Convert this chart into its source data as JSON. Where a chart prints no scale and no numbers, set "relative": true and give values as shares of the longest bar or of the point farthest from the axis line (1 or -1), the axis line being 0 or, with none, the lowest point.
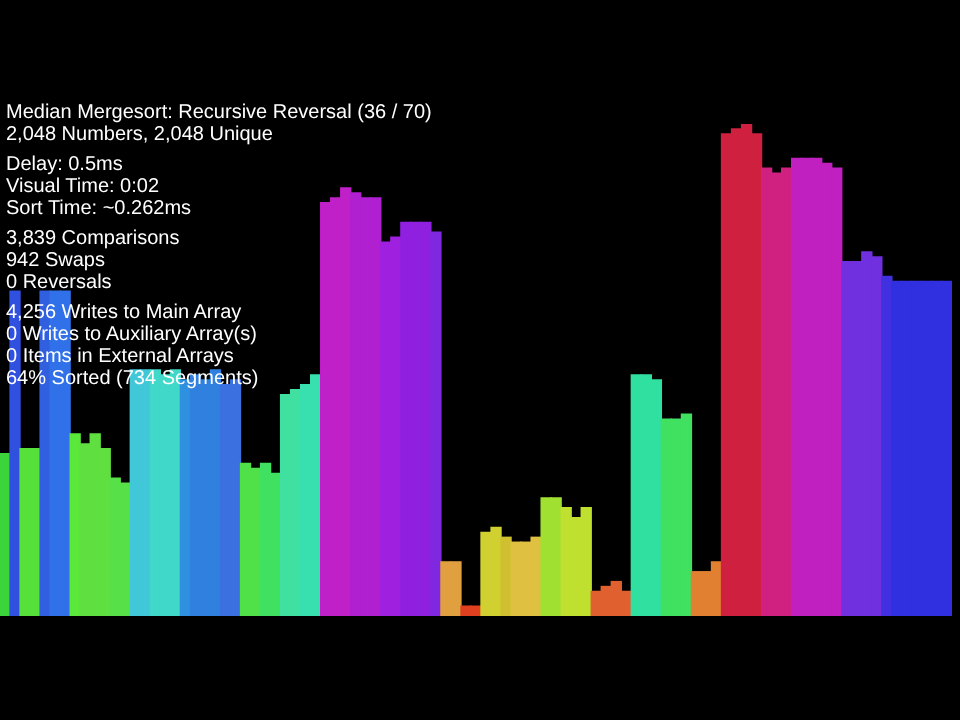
{
  "chart_data": {
    "type": "bar",
    "relative": true,
    "legend": false,
    "tick_labels": false,
    "title": "Median Mergesort: Recursive Reversal (36 / 70)",
    "subtitle": "2,048 Numbers, 2,048 Unique",
    "annotations": [
      "Delay: 0.5ms",
      "Visual Time: 0:02",
      "Sort Time: ~0.262ms",
      "3,839 Comparisons",
      "942 Swaps",
      "0 Reversals",
      "4,256 Writes to Main Array",
      "0 Writes to Auxiliary Array(s)",
      "0 Items in External Arrays",
      "64% Sorted (734 Segments)"
    ],
    "categories": [
      null,
      null,
      null,
      null,
      null,
      null,
      null,
      null,
      null,
      null,
      null,
      null,
      null,
      null,
      null,
      null,
      null,
      null,
      null,
      null,
      null,
      null,
      null,
      null,
      null,
      null,
      null,
      null,
      null,
      null,
      null,
      null,
      null,
      null,
      null,
      null,
      null,
      null,
      null,
      null,
      null,
      null,
      null,
      null,
      null,
      null,
      null,
      null,
      null,
      null,
      null,
      null,
      null,
      null,
      null,
      null,
      null,
      null,
      null,
      null,
      null,
      null,
      null,
      null,
      null,
      null,
      null,
      null,
      null,
      null,
      null,
      null,
      null,
      null,
      null,
      null,
      null,
      null,
      null,
      null,
      null,
      null,
      null,
      null,
      null,
      null,
      null,
      null,
      null,
      null,
      null,
      null,
      null,
      null,
      null
    ],
    "values": [
      0.33,
      0.66,
      0.34,
      0.34,
      0.66,
      0.66,
      0.66,
      0.37,
      0.35,
      0.37,
      0.34,
      0.28,
      0.27,
      0.5,
      0.5,
      0.5,
      0.49,
      0.5,
      0.48,
      0.49,
      0.48,
      0.5,
      0.47,
      0.48,
      0.31,
      0.3,
      0.31,
      0.29,
      0.45,
      0.46,
      0.47,
      0.49,
      0.84,
      0.85,
      0.87,
      0.86,
      0.85,
      0.85,
      0.76,
      0.77,
      0.8,
      0.8,
      0.8,
      0.78,
      0.11,
      0.11,
      0.02,
      0.02,
      0.17,
      0.18,
      0.16,
      0.15,
      0.15,
      0.16,
      0.24,
      0.24,
      0.22,
      0.2,
      0.22,
      0.05,
      0.06,
      0.07,
      0.05,
      0.49,
      0.49,
      0.48,
      0.4,
      0.4,
      0.41,
      0.09,
      0.09,
      0.11,
      0.98,
      0.99,
      1,
      0.98,
      0.91,
      0.9,
      0.91,
      0.93,
      0.93,
      0.93,
      0.92,
      0.91,
      0.72,
      0.72,
      0.74,
      0.73,
      0.69,
      0.68,
      0.68,
      0.68,
      0.68,
      0.68,
      0.68
    ],
    "colors": [
      "#3bd43b",
      "#3050e0",
      "#55e03a",
      "#55e03a",
      "#3060e0",
      "#3070e8",
      "#3070e8",
      "#5ae83a",
      "#60e040",
      "#60e040",
      "#60e040",
      "#58e048",
      "#58e048",
      "#40c8d8",
      "#40c8d8",
      "#40d8c8",
      "#40d8c8",
      "#40d8c8",
      "#3090e0",
      "#3080e0",
      "#3080e0",
      "#3080e0",
      "#3a70e0",
      "#3a70e0",
      "#50e048",
      "#50e048",
      "#40e060",
      "#40e060",
      "#40e0a0",
      "#40e0a0",
      "#38e0b0",
      "#38e0b0",
      "#c020c8",
      "#c020c8",
      "#c020c8",
      "#b020d0",
      "#b020d0",
      "#b020d0",
      "#a020e0",
      "#a020e0",
      "#9020e0",
      "#9020e0",
      "#9020e0",
      "#8028e0",
      "#e0a040",
      "#e0a040",
      "#e04020",
      "#e04020",
      "#d0d030",
      "#d0d030",
      "#d0c030",
      "#e0c040",
      "#e0c040",
      "#e0c040",
      "#a0e030",
      "#a0e030",
      "#c0e030",
      "#c0e030",
      "#c0e030",
      "#e06030",
      "#e06030",
      "#e06030",
      "#e06030",
      "#30e0a0",
      "#30e0a0",
      "#30e0a0",
      "#40e060",
      "#40e060",
      "#40e060",
      "#e08030",
      "#e08030",
      "#e08030",
      "#d02040",
      "#d02040",
      "#d02040",
      "#d02040",
      "#d02080",
      "#d02080",
      "#d02080",
      "#c020c0",
      "#c020c0",
      "#c020c0",
      "#c020c0",
      "#c020c0",
      "#7030e0",
      "#7030e0",
      "#7030e0",
      "#7030e0",
      "#4030e0",
      "#3030e0",
      "#3030e0",
      "#3030e0",
      "#3030e0",
      "#3030e0",
      "#3030e0"
    ]
  }
}
